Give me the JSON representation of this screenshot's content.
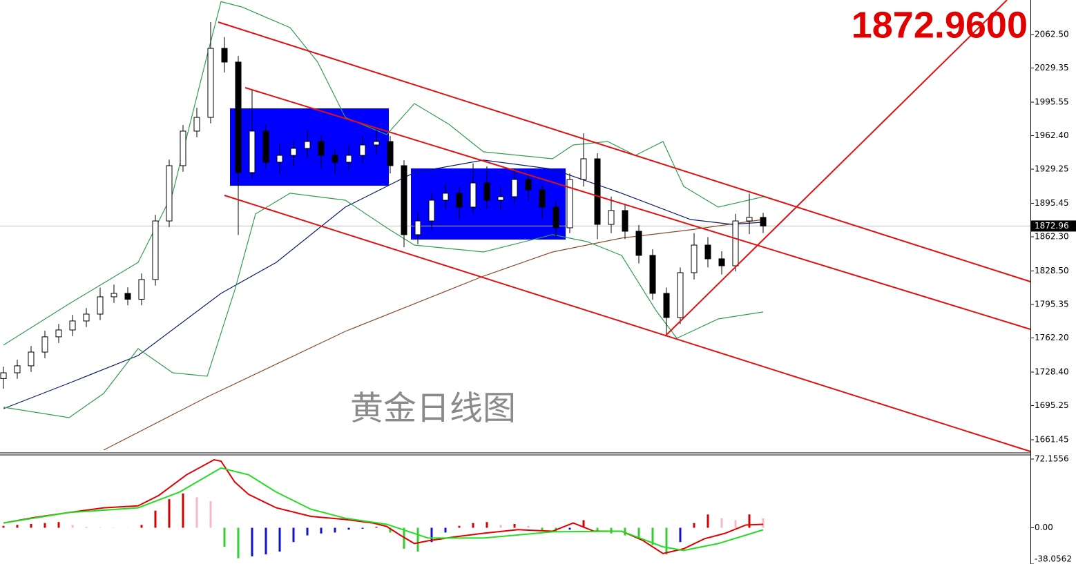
{
  "chart_data": [
    {
      "type": "candlestick",
      "annotation": "1872.9600",
      "watermark": "黄金日线图",
      "current_price": {
        "value": 1872.96,
        "label": "1872.96"
      },
      "ylim": [
        1649.15,
        2096.66
      ],
      "yticks": [
        {
          "value": 2062.5,
          "label": "2062.50"
        },
        2029.35,
        1995.55,
        {
          "value": 1962.4,
          "label": "1962.40"
        },
        1929.25,
        1895.45,
        {
          "value": 1862.3,
          "label": "1862.30"
        },
        {
          "value": 1828.5,
          "label": "1828.50"
        },
        1795.35,
        {
          "value": 1762.2,
          "label": "1762.20"
        },
        {
          "value": 1728.4,
          "label": "1728.40"
        },
        1695.25,
        1661.45
      ],
      "up_color": "#ffffff",
      "down_color": "#000000",
      "open": [
        1722.0,
        1727.7,
        1734.6,
        1748.2,
        1763.3,
        1770.1,
        1779.0,
        1785.8,
        1802.9,
        1806.3,
        1800.5,
        1820.0,
        1878.0,
        1932.7,
        1966.9,
        1980.5,
        2048.8,
        2035.2,
        1925.9,
        1966.9,
        1936.1,
        1942.9,
        1949.8,
        1956.6,
        1942.9,
        1936.1,
        1942.9,
        1953.2,
        1956.6,
        1932.7,
        1864.4,
        1878.0,
        1898.5,
        1905.4,
        1891.7,
        1915.6,
        1898.5,
        1902.0,
        1919.0,
        1908.8,
        1891.7,
        1871.2,
        1919.0,
        1939.5,
        1874.6,
        1888.3,
        1867.8,
        1843.9,
        1806.3,
        1782.4,
        1826.8,
        1854.1,
        1840.5,
        1833.6,
        1878.0,
        1881.5
      ],
      "high": [
        1733.7,
        1740.6,
        1754.2,
        1769.3,
        1776.1,
        1785.0,
        1791.8,
        1812.0,
        1815.0,
        1812.3,
        1826.0,
        1884.0,
        1938.7,
        1972.9,
        1990.0,
        2074.8,
        2060.0,
        2041.2,
        2008.0,
        1972.9,
        1955.0,
        1958.0,
        1968.0,
        1962.6,
        1950.0,
        1952.0,
        1962.0,
        1968.0,
        1962.0,
        1938.0,
        1886.0,
        1906.0,
        1915.0,
        1912.0,
        1935.0,
        1932.0,
        1912.0,
        1930.0,
        1926.0,
        1914.0,
        1898.0,
        1925.0,
        1964.8,
        1945.0,
        1902.0,
        1895.0,
        1874.0,
        1850.0,
        1812.0,
        1832.0,
        1866.0,
        1862.0,
        1848.0,
        1885.0,
        1905.0,
        1886.0
      ],
      "low": [
        1712.0,
        1721.7,
        1728.6,
        1742.2,
        1757.3,
        1764.1,
        1773.0,
        1779.8,
        1796.9,
        1794.5,
        1794.5,
        1814.0,
        1872.0,
        1926.7,
        1960.9,
        1974.5,
        2025.0,
        1864.0,
        1919.9,
        1930.1,
        1925.0,
        1932.0,
        1940.0,
        1930.0,
        1925.0,
        1928.0,
        1935.0,
        1944.0,
        1925.0,
        1852.0,
        1855.0,
        1870.0,
        1890.0,
        1880.0,
        1885.0,
        1890.0,
        1888.0,
        1895.0,
        1898.0,
        1880.0,
        1862.0,
        1866.0,
        1912.0,
        1860.0,
        1866.0,
        1860.0,
        1836.0,
        1800.0,
        1765.3,
        1776.0,
        1820.0,
        1832.0,
        1825.0,
        1828.0,
        1865.0,
        1866.0
      ],
      "close": [
        1727.7,
        1734.6,
        1748.2,
        1763.3,
        1770.1,
        1779.0,
        1785.8,
        1802.9,
        1806.3,
        1800.5,
        1820.0,
        1878.0,
        1932.7,
        1966.9,
        1980.5,
        2048.8,
        2035.2,
        1925.9,
        1966.9,
        1936.1,
        1942.9,
        1949.8,
        1956.6,
        1942.9,
        1936.1,
        1942.9,
        1953.2,
        1956.6,
        1932.7,
        1864.4,
        1878.0,
        1898.5,
        1905.4,
        1891.7,
        1915.6,
        1898.5,
        1902.0,
        1919.0,
        1908.8,
        1891.7,
        1871.2,
        1919.0,
        1939.5,
        1874.6,
        1888.3,
        1867.8,
        1843.9,
        1806.3,
        1782.4,
        1826.8,
        1854.1,
        1840.5,
        1833.6,
        1878.0,
        1881.5,
        1872.96
      ],
      "lines": [
        {
          "color": "#8b4a2b",
          "x": [
            7.25,
            14.75,
            24.75,
            29.75,
            34.75,
            39.75,
            44.75,
            49.75,
            55
          ],
          "values": [
            1651.2,
            1703.8,
            1768.7,
            1796.0,
            1823.4,
            1847.3,
            1861.0,
            1869.2,
            1879.4
          ]
        },
        {
          "color": "#0a1a6e",
          "x": [
            0,
            4.75,
            9.75,
            15.75,
            19.75,
            24.75,
            29.75,
            34.75,
            39.75,
            44.75,
            49.75,
            52.75,
            55
          ],
          "values": [
            1692.2,
            1717.5,
            1744.8,
            1806.3,
            1837.0,
            1891.7,
            1925.9,
            1938.2,
            1929.3,
            1905.4,
            1879.4,
            1874.6,
            1876.7
          ]
        },
        {
          "color": "#2e9e4f",
          "x": [
            0,
            4.75,
            9.75,
            12.25,
            14.75,
            15.75,
            17.25,
            20.75,
            22.75,
            24.75,
            27.75,
            29.75,
            32.25,
            34.75,
            39.75,
            41.25,
            43.75,
            45.75,
            47.75,
            49.25,
            51.75,
            55
          ],
          "values": [
            1755.1,
            1796.0,
            1837.0,
            1905.4,
            2042.0,
            2095.0,
            2089.8,
            2069.3,
            2035.2,
            1980.5,
            1963.4,
            1994.2,
            1973.7,
            1946.4,
            1939.5,
            1953.2,
            1956.6,
            1942.9,
            1956.6,
            1912.2,
            1891.7,
            1901.9
          ]
        },
        {
          "color": "#2e9e4f",
          "x": [
            0,
            4.75,
            7.25,
            9.75,
            12.25,
            14.75,
            16.75,
            18.25,
            20.75,
            24.75,
            27.75,
            29.75,
            34.75,
            39.75,
            42.25,
            44.75,
            47.25,
            48.75,
            51.75,
            55
          ],
          "values": [
            1693.6,
            1683.3,
            1707.2,
            1751.6,
            1727.7,
            1724.3,
            1809.7,
            1884.9,
            1905.4,
            1898.5,
            1871.2,
            1854.1,
            1847.3,
            1864.4,
            1857.5,
            1843.9,
            1789.2,
            1761.9,
            1781.0,
            1787.9
          ]
        }
      ]
    },
    {
      "type": "macd",
      "ylim": [
        -38.0562,
        72.1556
      ],
      "yticks": [
        72.1556,
        {
          "value": 0,
          "label": "0.00"
        },
        -38.0562
      ],
      "colors": {
        "pos_up": "#d40000",
        "pos_down": "#f5b8c4",
        "neg_down": "#33cc33",
        "neg_up": "#1010d0"
      },
      "histogram": [
        2,
        3,
        4,
        5,
        6,
        3,
        1,
        0.5,
        0.3,
        0.2,
        3,
        18,
        30,
        36,
        32,
        28,
        -20,
        -32,
        -30,
        -28,
        -25,
        -15,
        -8,
        -6,
        -5,
        -2,
        -1,
        1,
        -5,
        -22,
        -25,
        -15,
        -5,
        2,
        5,
        6,
        3,
        4,
        2,
        -3,
        -4,
        -2,
        8,
        -4,
        -6,
        -8,
        -12,
        -18,
        -28,
        -15,
        5,
        14,
        10,
        8,
        14,
        10
      ],
      "lines": [
        {
          "color": "#e00000",
          "x": [
            0,
            2.25,
            4.75,
            7.25,
            9.75,
            11.25,
            13.25,
            15.25,
            15.75,
            16.75,
            17.75,
            19.75,
            22.25,
            24.75,
            26.75,
            27.75,
            28.75,
            29.75,
            30.75,
            32.75,
            34.75,
            37.25,
            39.75,
            41.25,
            42.75,
            44.75,
            46.25,
            47.75,
            49.25,
            50.75,
            52.25,
            53.75,
            55
          ],
          "values": [
            5,
            10.8,
            16,
            21,
            23,
            34,
            55.6,
            71.4,
            70,
            48,
            35,
            21,
            12,
            8.7,
            5,
            1.4,
            -8,
            -16.6,
            -13.7,
            -9.4,
            -5.8,
            -2,
            -3.6,
            5,
            -3.6,
            -3.6,
            -13,
            -27,
            -22,
            -11.5,
            -5.8,
            2.9,
            3.6
          ]
        },
        {
          "color": "#22dd22",
          "x": [
            0,
            4.75,
            9.75,
            12.75,
            15.75,
            17.75,
            19.75,
            22.25,
            24.75,
            27.75,
            30.75,
            34.75,
            39.75,
            44.75,
            47.75,
            49.25,
            51.75,
            55
          ],
          "values": [
            5,
            16,
            21,
            37.5,
            62.8,
            55.6,
            37.5,
            19.5,
            10,
            3.6,
            -10.8,
            -10.8,
            -4.3,
            -3.6,
            -20,
            -23.8,
            -16.6,
            -2.2
          ]
        }
      ]
    }
  ]
}
